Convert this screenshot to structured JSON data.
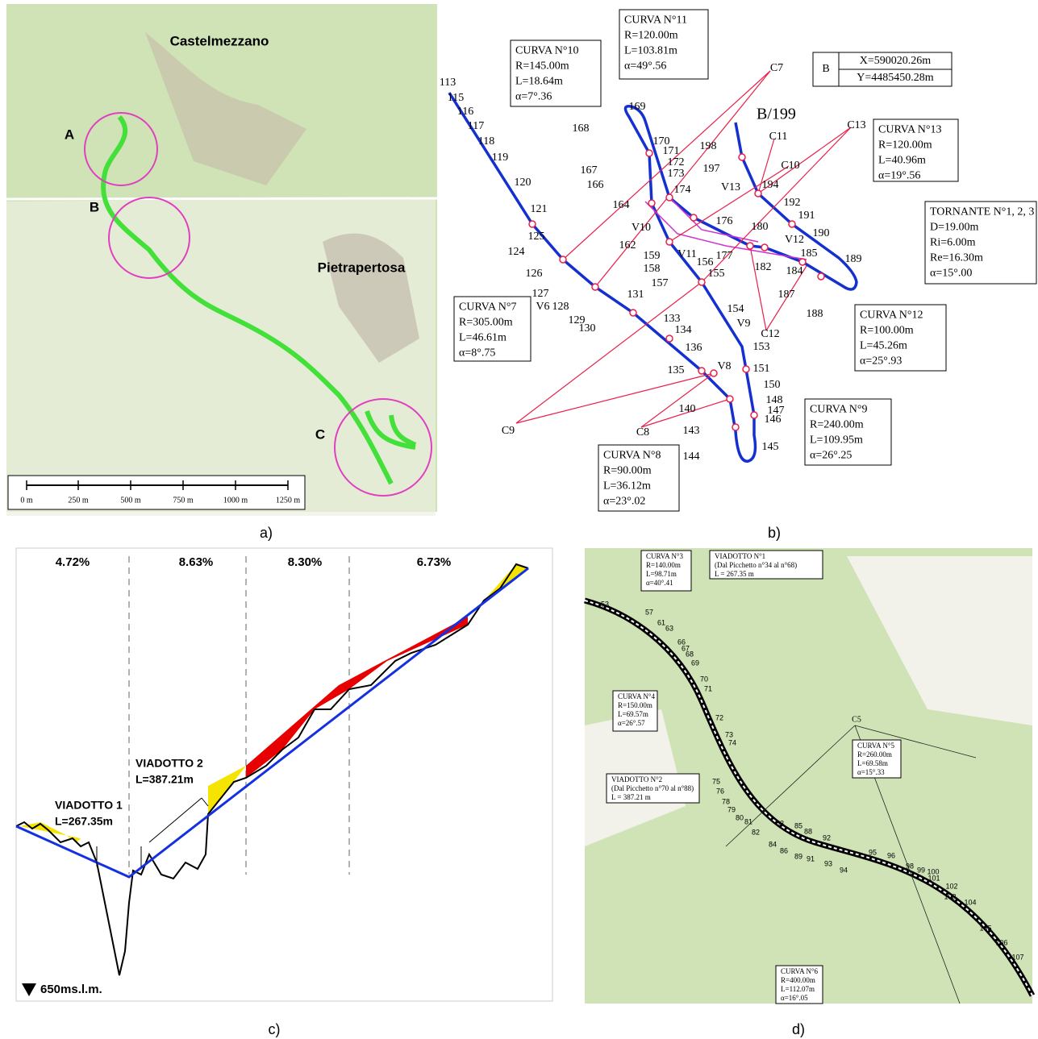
{
  "panel_labels": [
    "a)",
    "b)",
    "c)",
    "d)"
  ],
  "map_a": {
    "places": [
      "Castelmezzano",
      "Pietrapertosa"
    ],
    "markers": [
      "A",
      "B",
      "C"
    ],
    "scale_labels": [
      "0 m",
      "250 m",
      "500 m",
      "750 m",
      "1000 m",
      "1250 m"
    ]
  },
  "plan_b": {
    "curves": [
      {
        "title": "CURVA N°10",
        "lines": [
          "R=145.00m",
          "L=18.64m",
          "α=7°.36"
        ]
      },
      {
        "title": "CURVA N°11",
        "lines": [
          "R=120.00m",
          "L=103.81m",
          "α=49°.56"
        ]
      },
      {
        "title": "CURVA N°13",
        "lines": [
          "R=120.00m",
          "L=40.96m",
          "α=19°.56"
        ]
      },
      {
        "title": "TORNANTE N°1, 2, 3",
        "lines": [
          "D=19.00m",
          "Ri=6.00m",
          "Re=16.30m",
          "α=15°.00"
        ]
      },
      {
        "title": "CURVA N°7",
        "lines": [
          "R=305.00m",
          "L=46.61m",
          "α=8°.75"
        ]
      },
      {
        "title": "CURVA N°12",
        "lines": [
          "R=100.00m",
          "L=45.26m",
          "α=25°.93"
        ]
      },
      {
        "title": "CURVA N°9",
        "lines": [
          "R=240.00m",
          "L=109.95m",
          "α=26°.25"
        ]
      },
      {
        "title": "CURVA N°8",
        "lines": [
          "R=90.00m",
          "L=36.12m",
          "α=23°.02"
        ]
      }
    ],
    "coords": [
      "B",
      "X=590020.26m",
      "Y=4485450.28m"
    ],
    "label": "B/199",
    "stations": [
      "113",
      "115",
      "116",
      "117",
      "118",
      "119",
      "120",
      "121",
      "124",
      "125",
      "126",
      "127",
      "128",
      "129",
      "130",
      "131",
      "133",
      "134",
      "135",
      "136",
      "140",
      "143",
      "144",
      "145",
      "146",
      "147",
      "148",
      "150",
      "151",
      "153",
      "154",
      "155",
      "156",
      "157",
      "158",
      "159",
      "162",
      "164",
      "166",
      "167",
      "168",
      "169",
      "170",
      "171",
      "172",
      "173",
      "174",
      "176",
      "177",
      "180",
      "182",
      "184",
      "185",
      "187",
      "188",
      "189",
      "190",
      "191",
      "192",
      "194",
      "197",
      "198"
    ],
    "vertices": [
      "V6",
      "V8",
      "V9",
      "V10",
      "V11",
      "V12",
      "V13",
      "C7",
      "C8",
      "C9",
      "C10",
      "C11",
      "C12",
      "C13"
    ]
  },
  "profile_c": {
    "grades": [
      "4.72%",
      "8.63%",
      "8.30%",
      "6.73%"
    ],
    "viaducts": [
      {
        "name": "VIADOTTO 1",
        "length": "L=267.35m"
      },
      {
        "name": "VIADOTTO 2",
        "length": "L=387.21m"
      }
    ],
    "datum": "650ms.l.m."
  },
  "map_d": {
    "boxes": [
      {
        "title": "CURVA N°3",
        "lines": [
          "R=140.00m",
          "L=98.71m",
          "α=40°.41"
        ]
      },
      {
        "title": "VIADOTTO N°1",
        "lines": [
          "(Dal Picchetto n°34 al n°68)",
          "L = 267.35 m"
        ]
      },
      {
        "title": "CURVA N°4",
        "lines": [
          "R=150.00m",
          "L=69.57m",
          "α=26°.57"
        ]
      },
      {
        "title": "CURVA N°5",
        "lines": [
          "R=260.00m",
          "L=69.58m",
          "α=15°.33"
        ]
      },
      {
        "title": "VIADOTTO N°2",
        "lines": [
          "(Dal Picchetto n°70 al n°88)",
          "L = 387.21 m"
        ]
      },
      {
        "title": "CURVA N°6",
        "lines": [
          "R=400.00m",
          "L=112.07m",
          "α=16°.05"
        ]
      }
    ],
    "vertex": "C5",
    "stations": [
      "53",
      "57",
      "61",
      "63",
      "66",
      "67",
      "68",
      "69",
      "70",
      "71",
      "72",
      "73",
      "74",
      "75",
      "76",
      "78",
      "79",
      "80",
      "81",
      "82",
      "83",
      "84",
      "85",
      "86",
      "88",
      "89",
      "91",
      "92",
      "93",
      "94",
      "95",
      "96",
      "98",
      "99",
      "100",
      "101",
      "102",
      "103",
      "104",
      "105",
      "106",
      "107"
    ]
  }
}
